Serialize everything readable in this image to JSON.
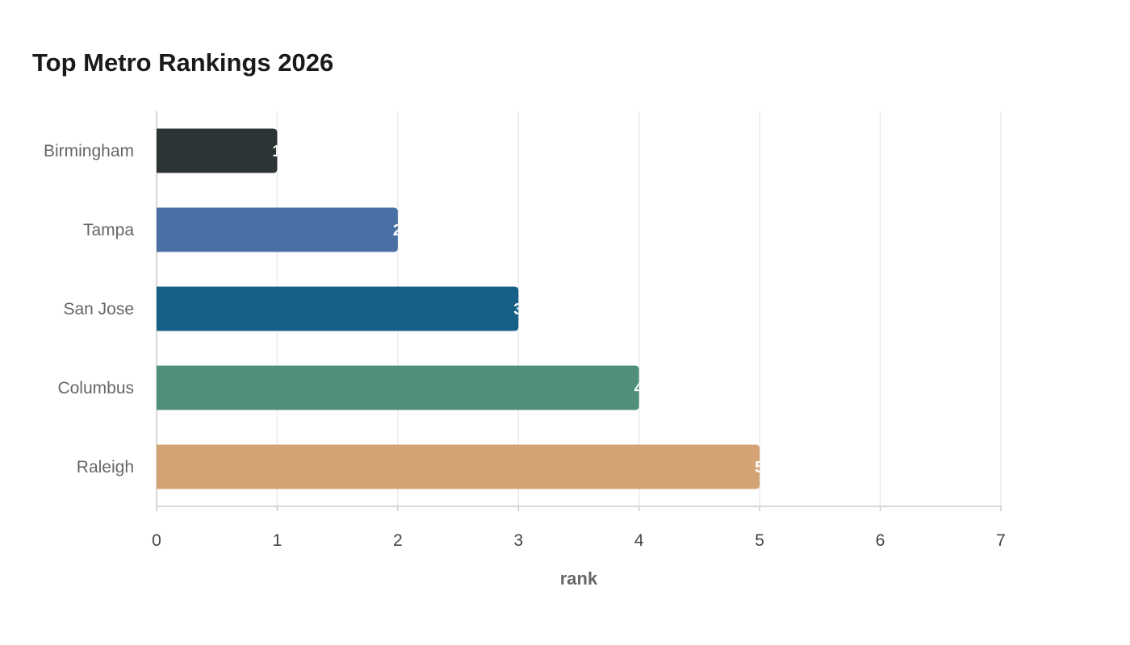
{
  "chart_data": {
    "type": "bar",
    "orientation": "horizontal",
    "title": "Top Metro Rankings 2026",
    "xlabel": "rank",
    "ylabel": "",
    "xlim": [
      0,
      7
    ],
    "x_ticks": [
      "0",
      "1",
      "2",
      "3",
      "4",
      "5",
      "6",
      "7"
    ],
    "grid": true,
    "categories": [
      "Birmingham",
      "Tampa",
      "San Jose",
      "Columbus",
      "Raleigh"
    ],
    "values": [
      1,
      2,
      3,
      4,
      5
    ],
    "value_labels": [
      "1",
      "2",
      "3",
      "4",
      "5"
    ],
    "colors": [
      "#2d3436",
      "#4a6fa5",
      "#166088",
      "#4f8f7b",
      "#d4a373"
    ]
  }
}
